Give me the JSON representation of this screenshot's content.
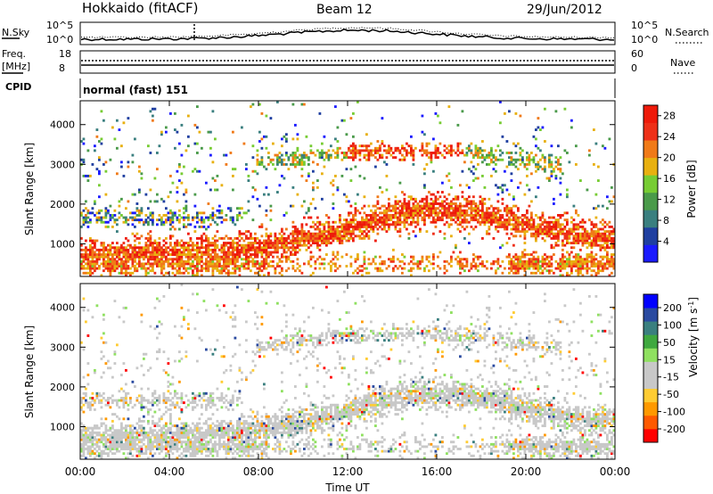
{
  "header": {
    "station": "Hokkaido (fitACF)",
    "beam": "Beam 12",
    "date": "29/Jun/2012"
  },
  "strip": {
    "noise_left_label": "N.Sky",
    "noise_right_label": "N.Search",
    "noise_ticks_left": [
      "10^5",
      "10^0"
    ],
    "noise_ticks_right": [
      "10^5",
      "10^0"
    ],
    "freq_label_line1": "Freq.",
    "freq_label_line2": "[MHz]",
    "freq_ticks": [
      "18",
      "8"
    ],
    "nave_label": "Nave",
    "nave_ticks": [
      "60",
      "0"
    ],
    "cpid_label": "CPID",
    "cpid_value": "normal (fast) 151"
  },
  "colors": {
    "power": [
      "#1a1aff",
      "#1f3fa0",
      "#3a7f7f",
      "#4a9a4a",
      "#77cc33",
      "#e8b010",
      "#f07a18",
      "#ee3018",
      "#ee1a0a"
    ],
    "velocity": [
      "#ff0000",
      "#ff5a00",
      "#ff9900",
      "#ffcc33",
      "#c8c8c8",
      "#c8c8c8",
      "#8fe060",
      "#3fa83f",
      "#3a7f7f",
      "#2a4aa0",
      "#0000ff"
    ]
  },
  "chart_data": [
    {
      "type": "heatmap",
      "name": "power",
      "ylabel": "Slant Range [km]",
      "y_ticks": [
        "1000",
        "2000",
        "3000",
        "4000"
      ],
      "ylim": [
        180,
        4600
      ],
      "x_ticks": [
        "00:00",
        "04:00",
        "08:00",
        "12:00",
        "16:00",
        "20:00",
        "00:00"
      ],
      "colorbar_label": "Power [dB]",
      "colorbar_ticks": [
        "4",
        "8",
        "12",
        "16",
        "20",
        "24",
        "28"
      ],
      "colorbar_range": [
        0,
        30
      ]
    },
    {
      "type": "heatmap",
      "name": "velocity",
      "ylabel": "Slant Range [km]",
      "y_ticks": [
        "1000",
        "2000",
        "3000",
        "4000"
      ],
      "ylim": [
        180,
        4600
      ],
      "x_ticks": [
        "00:00",
        "04:00",
        "08:00",
        "12:00",
        "16:00",
        "20:00",
        "00:00"
      ],
      "xlabel": "Time UT",
      "colorbar_label": "Velocity [m s",
      "colorbar_unit_exp": "-1",
      "colorbar_ticks": [
        "200",
        "100",
        "50",
        "15",
        "-15",
        "-50",
        "-100",
        "-200"
      ]
    }
  ]
}
